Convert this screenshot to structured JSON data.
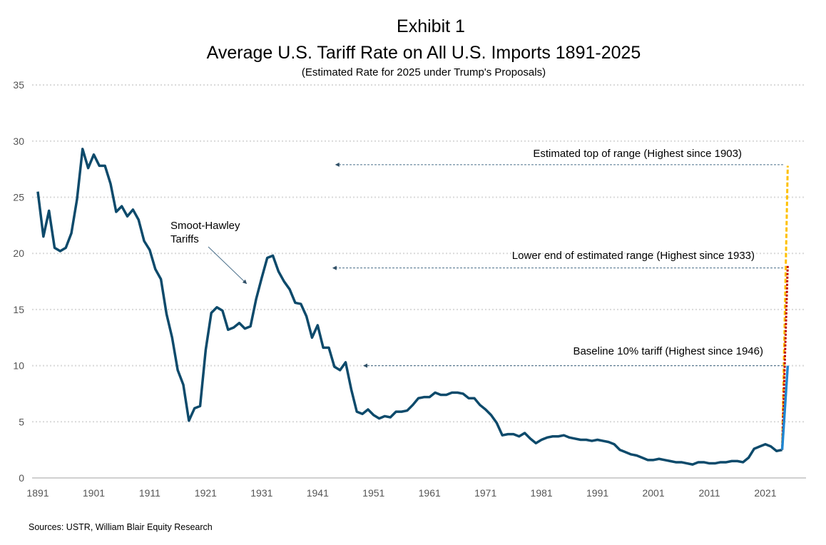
{
  "chart_data": {
    "type": "line",
    "title_line1": "Exhibit 1",
    "title": "Average U.S. Tariff Rate on All U.S. Imports 1891-2025",
    "subtitle": "(Estimated Rate for 2025 under Trump's Proposals)",
    "xlabel": "",
    "ylabel": "",
    "ylim": [
      0,
      35
    ],
    "xlim": [
      1891,
      2025
    ],
    "yticks": [
      0,
      5,
      10,
      15,
      20,
      25,
      30,
      35
    ],
    "xticks": [
      1891,
      1901,
      1911,
      1921,
      1931,
      1941,
      1951,
      1961,
      1971,
      1981,
      1991,
      2001,
      2011,
      2021
    ],
    "grid": "horizontal dotted",
    "colors": {
      "history": "#0d4a6b",
      "baseline": "#1f86d1",
      "lower": "#c00000",
      "top": "#ffc000",
      "arrow": "#4a6f8a"
    },
    "series": [
      {
        "name": "Average tariff rate",
        "start_year": 1891,
        "values": [
          25.5,
          21.5,
          23.8,
          20.5,
          20.2,
          20.5,
          21.8,
          24.8,
          29.3,
          27.6,
          28.8,
          27.8,
          27.8,
          26.2,
          23.7,
          24.2,
          23.3,
          23.9,
          23.0,
          21.1,
          20.3,
          18.6,
          17.7,
          14.6,
          12.5,
          9.6,
          8.3,
          5.1,
          6.2,
          6.4,
          11.4,
          14.7,
          15.2,
          14.9,
          13.2,
          13.4,
          13.8,
          13.3,
          13.5,
          15.9,
          17.8,
          19.6,
          19.8,
          18.4,
          17.5,
          16.8,
          15.6,
          15.5,
          14.4,
          12.5,
          13.6,
          11.6,
          11.6,
          9.9,
          9.6,
          10.3,
          7.9,
          5.9,
          5.7,
          6.1,
          5.6,
          5.3,
          5.5,
          5.4,
          5.9,
          5.9,
          6.0,
          6.5,
          7.1,
          7.2,
          7.2,
          7.6,
          7.4,
          7.4,
          7.6,
          7.6,
          7.5,
          7.1,
          7.1,
          6.5,
          6.1,
          5.6,
          4.9,
          3.8,
          3.9,
          3.9,
          3.7,
          4.0,
          3.5,
          3.1,
          3.4,
          3.6,
          3.7,
          3.7,
          3.8,
          3.6,
          3.5,
          3.4,
          3.4,
          3.3,
          3.4,
          3.3,
          3.2,
          3.0,
          2.5,
          2.3,
          2.1,
          2.0,
          1.8,
          1.6,
          1.6,
          1.7,
          1.6,
          1.5,
          1.4,
          1.4,
          1.3,
          1.2,
          1.4,
          1.4,
          1.3,
          1.3,
          1.4,
          1.4,
          1.5,
          1.5,
          1.4,
          1.8,
          2.6,
          2.8,
          3.0,
          2.8,
          2.4,
          2.5
        ]
      },
      {
        "name": "Baseline 10% tariff",
        "x": [
          2024,
          2025
        ],
        "values": [
          2.5,
          10.0
        ]
      },
      {
        "name": "Lower end of estimated range",
        "x": [
          2024,
          2025
        ],
        "values": [
          2.5,
          19.0
        ]
      },
      {
        "name": "Estimated top of range",
        "x": [
          2024,
          2025
        ],
        "values": [
          2.5,
          27.8
        ]
      }
    ],
    "annotations": [
      {
        "text": "Estimated top of range (Highest since 1903)",
        "value": 27.9,
        "arrow_to_year": 1944.5
      },
      {
        "text": "Lower end of estimated range (Highest since 1933)",
        "value": 18.7,
        "arrow_to_year": 1944
      },
      {
        "text": "Baseline 10% tariff  (Highest since 1946)",
        "value": 10.0,
        "arrow_to_year": 1949.5
      },
      {
        "text_lines": [
          "Smoot-Hawley",
          "Tariffs"
        ]
      }
    ],
    "source": "Sources: USTR, William Blair Equity Research"
  }
}
